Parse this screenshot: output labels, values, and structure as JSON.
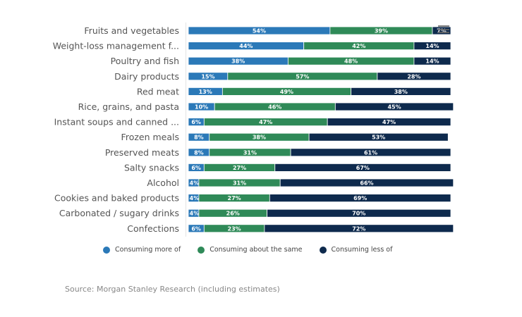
{
  "chart_data": {
    "type": "bar",
    "orientation": "horizontal",
    "stacked": true,
    "title": "",
    "xlabel": "",
    "ylabel": "",
    "xlim": [
      0,
      100
    ],
    "unit": "%",
    "grid": false,
    "legend_position": "bottom",
    "categories": [
      "Fruits and vegetables",
      "Weight-loss management f...",
      "Poultry and fish",
      "Dairy products",
      "Red meat",
      "Rice, grains, and pasta",
      "Instant soups and canned ...",
      "Frozen meals",
      "Preserved meats",
      "Salty snacks",
      "Alcohol",
      "Cookies and baked products",
      "Carbonated / sugary drinks",
      "Confections"
    ],
    "series": [
      {
        "name": "Consuming more of",
        "color": "#2b79b8",
        "values": [
          54,
          44,
          38,
          15,
          13,
          10,
          6,
          8,
          8,
          6,
          4,
          4,
          4,
          6
        ]
      },
      {
        "name": "Consuming about the same",
        "color": "#2f8a58",
        "values": [
          39,
          42,
          48,
          57,
          49,
          46,
          47,
          38,
          31,
          27,
          31,
          27,
          26,
          23
        ]
      },
      {
        "name": "Consuming less of",
        "color": "#0e2a4d",
        "values": [
          7,
          14,
          14,
          28,
          38,
          45,
          47,
          53,
          61,
          67,
          66,
          69,
          70,
          72
        ]
      }
    ]
  },
  "legend": {
    "items": [
      {
        "label": "Consuming more of",
        "color": "#2b79b8"
      },
      {
        "label": "Consuming about the same",
        "color": "#2f8a58"
      },
      {
        "label": "Consuming less of",
        "color": "#0e2a4d"
      }
    ]
  },
  "source": "Source: Morgan Stanley Research (including estimates)",
  "menu": {
    "icon": "hamburger-menu-icon"
  }
}
